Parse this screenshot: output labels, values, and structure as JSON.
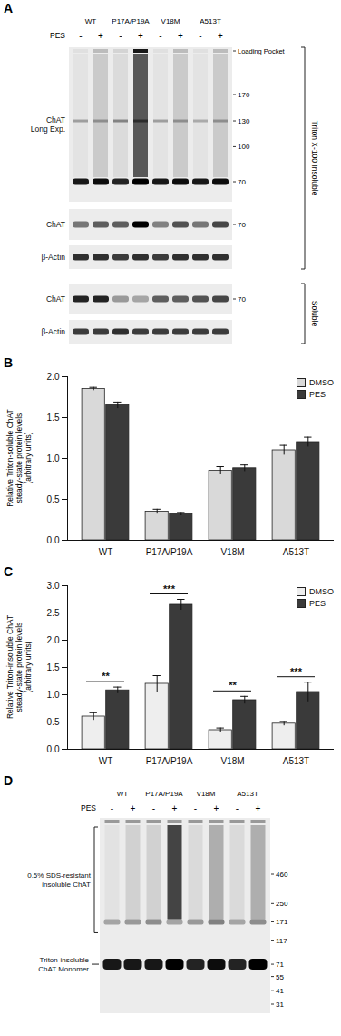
{
  "panel_A": {
    "letter": "A",
    "treatment": "PES",
    "groups": [
      "WT",
      "P17A/P19A",
      "V18M",
      "A513T"
    ],
    "signs": [
      "-",
      "+",
      "-",
      "+",
      "-",
      "+",
      "-",
      "+"
    ],
    "blots": [
      {
        "label_lines": [
          "ChAT",
          "Long Exp."
        ],
        "fraction": "Triton X-100 Insoluble",
        "markers": [
          170,
          130,
          100,
          70
        ],
        "pocket_label": "Loading Pocket",
        "band_kDa": 70,
        "band": [
          0.9,
          0.95,
          0.85,
          1.0,
          0.9,
          0.95,
          0.9,
          0.95
        ],
        "high_band_kDa": 130,
        "high_band": [
          0.3,
          0.3,
          0.4,
          0.5,
          0.3,
          0.3,
          0.25,
          0.3
        ],
        "smear": [
          0.05,
          0.2,
          0.1,
          0.9,
          0.05,
          0.2,
          0.05,
          0.2
        ]
      },
      {
        "label_lines": [
          "ChAT"
        ],
        "fraction": "Triton X-100 Insoluble",
        "markers": [
          70
        ],
        "band_kDa": 70,
        "band": [
          0.5,
          0.6,
          0.6,
          1.0,
          0.45,
          0.65,
          0.5,
          0.7
        ]
      },
      {
        "label_lines": [
          "β-Actin"
        ],
        "fraction": "Triton X-100 Insoluble",
        "band": [
          0.8,
          0.8,
          0.75,
          0.8,
          0.75,
          0.8,
          0.8,
          0.8
        ]
      },
      {
        "label_lines": [
          "ChAT"
        ],
        "fraction": "Soluble",
        "markers": [
          70
        ],
        "band_kDa": 70,
        "band": [
          0.85,
          0.85,
          0.35,
          0.3,
          0.6,
          0.6,
          0.65,
          0.7
        ]
      },
      {
        "label_lines": [
          "β-Actin"
        ],
        "fraction": "Soluble",
        "band": [
          0.75,
          0.75,
          0.8,
          0.75,
          0.75,
          0.75,
          0.75,
          0.75
        ]
      }
    ]
  },
  "chart_data": [
    {
      "type": "bar",
      "panel_label": "B",
      "y_label": "Relative Triton-soluble ChAT steady-state protein levels (arbitrary units)",
      "categories": [
        "WT",
        "P17A/P19A",
        "V18M",
        "A513T"
      ],
      "series": [
        {
          "name": "DMSO",
          "color": "#d9d9d9",
          "values": [
            1.85,
            0.35,
            0.85,
            1.1
          ],
          "errors": [
            0.02,
            0.03,
            0.05,
            0.06
          ]
        },
        {
          "name": "PES",
          "color": "#3a3a3a",
          "values": [
            1.65,
            0.32,
            0.88,
            1.2
          ],
          "errors": [
            0.04,
            0.02,
            0.04,
            0.06
          ]
        }
      ],
      "ylim": [
        0,
        2
      ],
      "yticks": [
        {
          "value": 0,
          "label": "0.0"
        },
        0.5,
        {
          "value": 1,
          "label": "1.0"
        },
        1.5,
        {
          "value": 2,
          "label": "2.0"
        }
      ],
      "legend": "top-right"
    },
    {
      "type": "bar",
      "panel_label": "C",
      "y_label": "Relative Triton-insoluble ChAT steady-state protein levels (arbitrary units)",
      "categories": [
        "WT",
        "P17A/P19A",
        "V18M",
        "A513T"
      ],
      "series": [
        {
          "name": "DMSO",
          "color": "#eeeeee",
          "values": [
            0.6,
            1.2,
            0.35,
            0.47
          ],
          "errors": [
            0.07,
            0.15,
            0.04,
            0.04
          ]
        },
        {
          "name": "PES",
          "color": "#3a3a3a",
          "values": [
            1.08,
            2.65,
            0.9,
            1.05
          ],
          "errors": [
            0.06,
            0.1,
            0.07,
            0.18
          ]
        }
      ],
      "significance": [
        "**",
        "***",
        "**",
        "***"
      ],
      "ylim": [
        0,
        3
      ],
      "yticks": [
        {
          "value": 0,
          "label": "0.0"
        },
        0.5,
        {
          "value": 1,
          "label": "1.0"
        },
        1.5,
        {
          "value": 2,
          "label": "2.0"
        },
        2.5,
        {
          "value": 3,
          "label": "3.0"
        }
      ],
      "legend": "top-right"
    }
  ],
  "panel_D": {
    "letter": "D",
    "treatment": "PES",
    "groups": [
      "WT",
      "P17A/P19A",
      "V18M",
      "A513T"
    ],
    "signs": [
      "-",
      "+",
      "-",
      "+",
      "-",
      "+",
      "-",
      "+"
    ],
    "markers": [
      460,
      250,
      171,
      117,
      71,
      55,
      41,
      31
    ],
    "oligomer_label": "0.5% SDS-resistant insoluble ChAT",
    "monomer_label": "Triton-insoluble ChAT Monomer",
    "monomer_kDa": 71,
    "monomer": [
      0.9,
      0.9,
      0.9,
      1.0,
      0.85,
      0.95,
      0.85,
      1.0
    ],
    "oligomer_kDa": 171,
    "oligomer": [
      0.3,
      0.35,
      0.4,
      0.3,
      0.35,
      0.45,
      0.3,
      0.4
    ],
    "smear": [
      0.05,
      0.15,
      0.15,
      0.95,
      0.1,
      0.35,
      0.1,
      0.35
    ]
  }
}
